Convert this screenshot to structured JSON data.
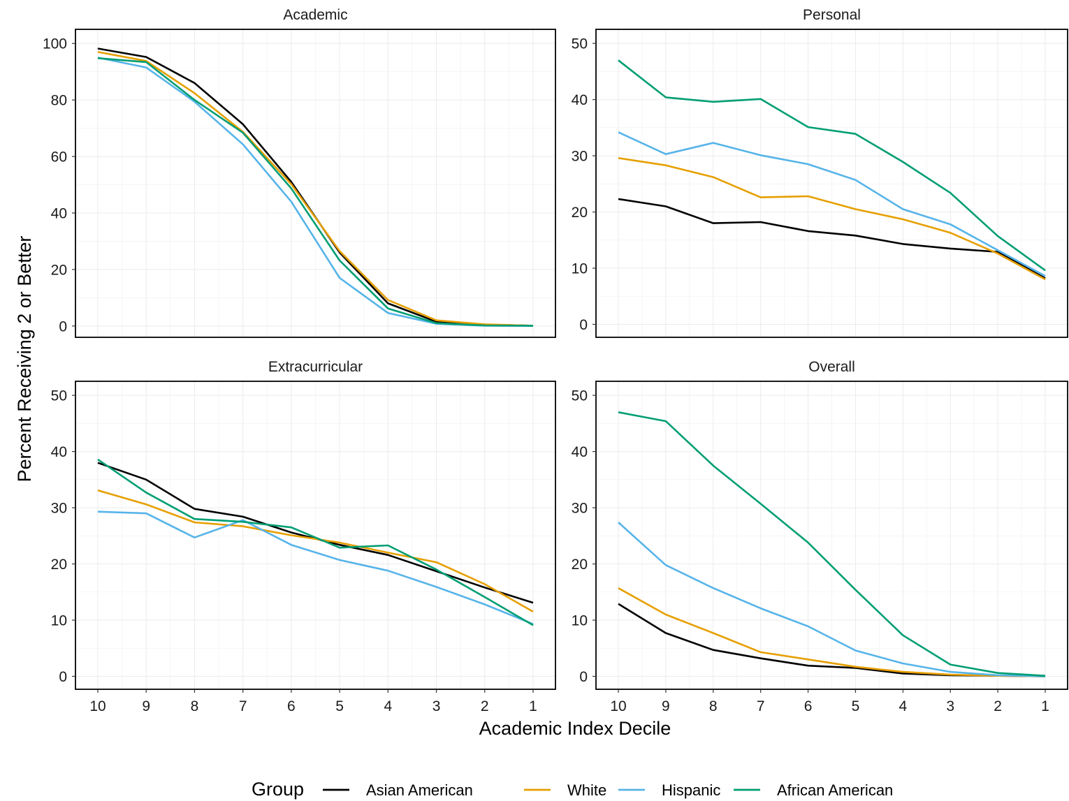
{
  "chart_data": {
    "type": "line",
    "ylabel": "Percent Receiving 2 or Better",
    "xlabel": "Academic Index Decile",
    "categories": [
      "10",
      "9",
      "8",
      "7",
      "6",
      "5",
      "4",
      "3",
      "2",
      "1"
    ],
    "legend": {
      "title": "Group",
      "placement": "bottom",
      "entries": [
        "Asian American",
        "White",
        "Hispanic",
        "African American"
      ]
    },
    "colors": {
      "Asian American": "#000000",
      "White": "#E69F00",
      "Hispanic": "#56B4E9",
      "African American": "#009E73"
    },
    "grid": true,
    "panels": [
      {
        "title": "Academic",
        "ylim": [
          -4,
          105
        ],
        "yticks": [
          0,
          20,
          40,
          60,
          80,
          100
        ],
        "series": [
          {
            "name": "Asian American",
            "values": [
              98.2,
              95.2,
              86.0,
              71.4,
              51.0,
              26.0,
              8.0,
              1.5,
              0.5,
              0.1
            ]
          },
          {
            "name": "White",
            "values": [
              97.0,
              93.8,
              82.4,
              68.7,
              50.2,
              26.5,
              9.2,
              2.0,
              0.6,
              0.1
            ]
          },
          {
            "name": "Hispanic",
            "values": [
              95.0,
              91.5,
              79.4,
              64.3,
              44.0,
              17.0,
              4.6,
              0.8,
              0.1,
              0.0
            ]
          },
          {
            "name": "African American",
            "values": [
              94.8,
              93.4,
              80.0,
              68.4,
              48.7,
              23.2,
              6.2,
              1.0,
              0.2,
              0.1
            ]
          }
        ]
      },
      {
        "title": "Personal",
        "ylim": [
          -2.3,
          52.5
        ],
        "yticks": [
          0,
          10,
          20,
          30,
          40,
          50
        ],
        "series": [
          {
            "name": "Asian American",
            "values": [
              22.3,
              21.0,
              18.0,
              18.2,
              16.6,
              15.8,
              14.3,
              13.5,
              12.9,
              8.2
            ]
          },
          {
            "name": "White",
            "values": [
              29.6,
              28.3,
              26.2,
              22.6,
              22.8,
              20.5,
              18.7,
              16.3,
              12.6,
              8.0
            ]
          },
          {
            "name": "Hispanic",
            "values": [
              34.2,
              30.3,
              32.3,
              30.1,
              28.5,
              25.7,
              20.5,
              17.8,
              13.2,
              8.6
            ]
          },
          {
            "name": "African American",
            "values": [
              47.0,
              40.4,
              39.6,
              40.1,
              35.1,
              33.9,
              28.9,
              23.4,
              15.7,
              9.6
            ]
          }
        ]
      },
      {
        "title": "Extracurricular",
        "ylim": [
          -2.3,
          52.5
        ],
        "yticks": [
          0,
          10,
          20,
          30,
          40,
          50
        ],
        "series": [
          {
            "name": "Asian American",
            "values": [
              38.0,
              35.0,
              29.8,
              28.4,
              25.6,
              23.4,
              21.6,
              18.7,
              15.8,
              13.1
            ]
          },
          {
            "name": "White",
            "values": [
              33.1,
              30.6,
              27.4,
              26.7,
              25.1,
              23.8,
              22.0,
              20.3,
              16.4,
              11.5
            ]
          },
          {
            "name": "Hispanic",
            "values": [
              29.3,
              29.0,
              24.7,
              27.8,
              23.4,
              20.7,
              18.8,
              15.9,
              12.8,
              9.3
            ]
          },
          {
            "name": "African American",
            "values": [
              38.6,
              32.7,
              28.0,
              27.5,
              26.5,
              22.9,
              23.3,
              19.0,
              14.1,
              9.1
            ]
          }
        ]
      },
      {
        "title": "Overall",
        "ylim": [
          -2.3,
          52.5
        ],
        "yticks": [
          0,
          10,
          20,
          30,
          40,
          50
        ],
        "series": [
          {
            "name": "Asian American",
            "values": [
              12.9,
              7.7,
              4.7,
              3.2,
              1.9,
              1.5,
              0.5,
              0.2,
              0.1,
              0.0
            ]
          },
          {
            "name": "White",
            "values": [
              15.7,
              11.0,
              7.7,
              4.3,
              3.0,
              1.7,
              0.8,
              0.3,
              0.1,
              0.0
            ]
          },
          {
            "name": "Hispanic",
            "values": [
              27.4,
              19.8,
              15.7,
              12.1,
              8.9,
              4.6,
              2.3,
              0.8,
              0.2,
              0.0
            ]
          },
          {
            "name": "African American",
            "values": [
              47.0,
              45.4,
              37.5,
              30.7,
              23.8,
              15.4,
              7.3,
              2.1,
              0.6,
              0.1
            ]
          }
        ]
      }
    ]
  }
}
